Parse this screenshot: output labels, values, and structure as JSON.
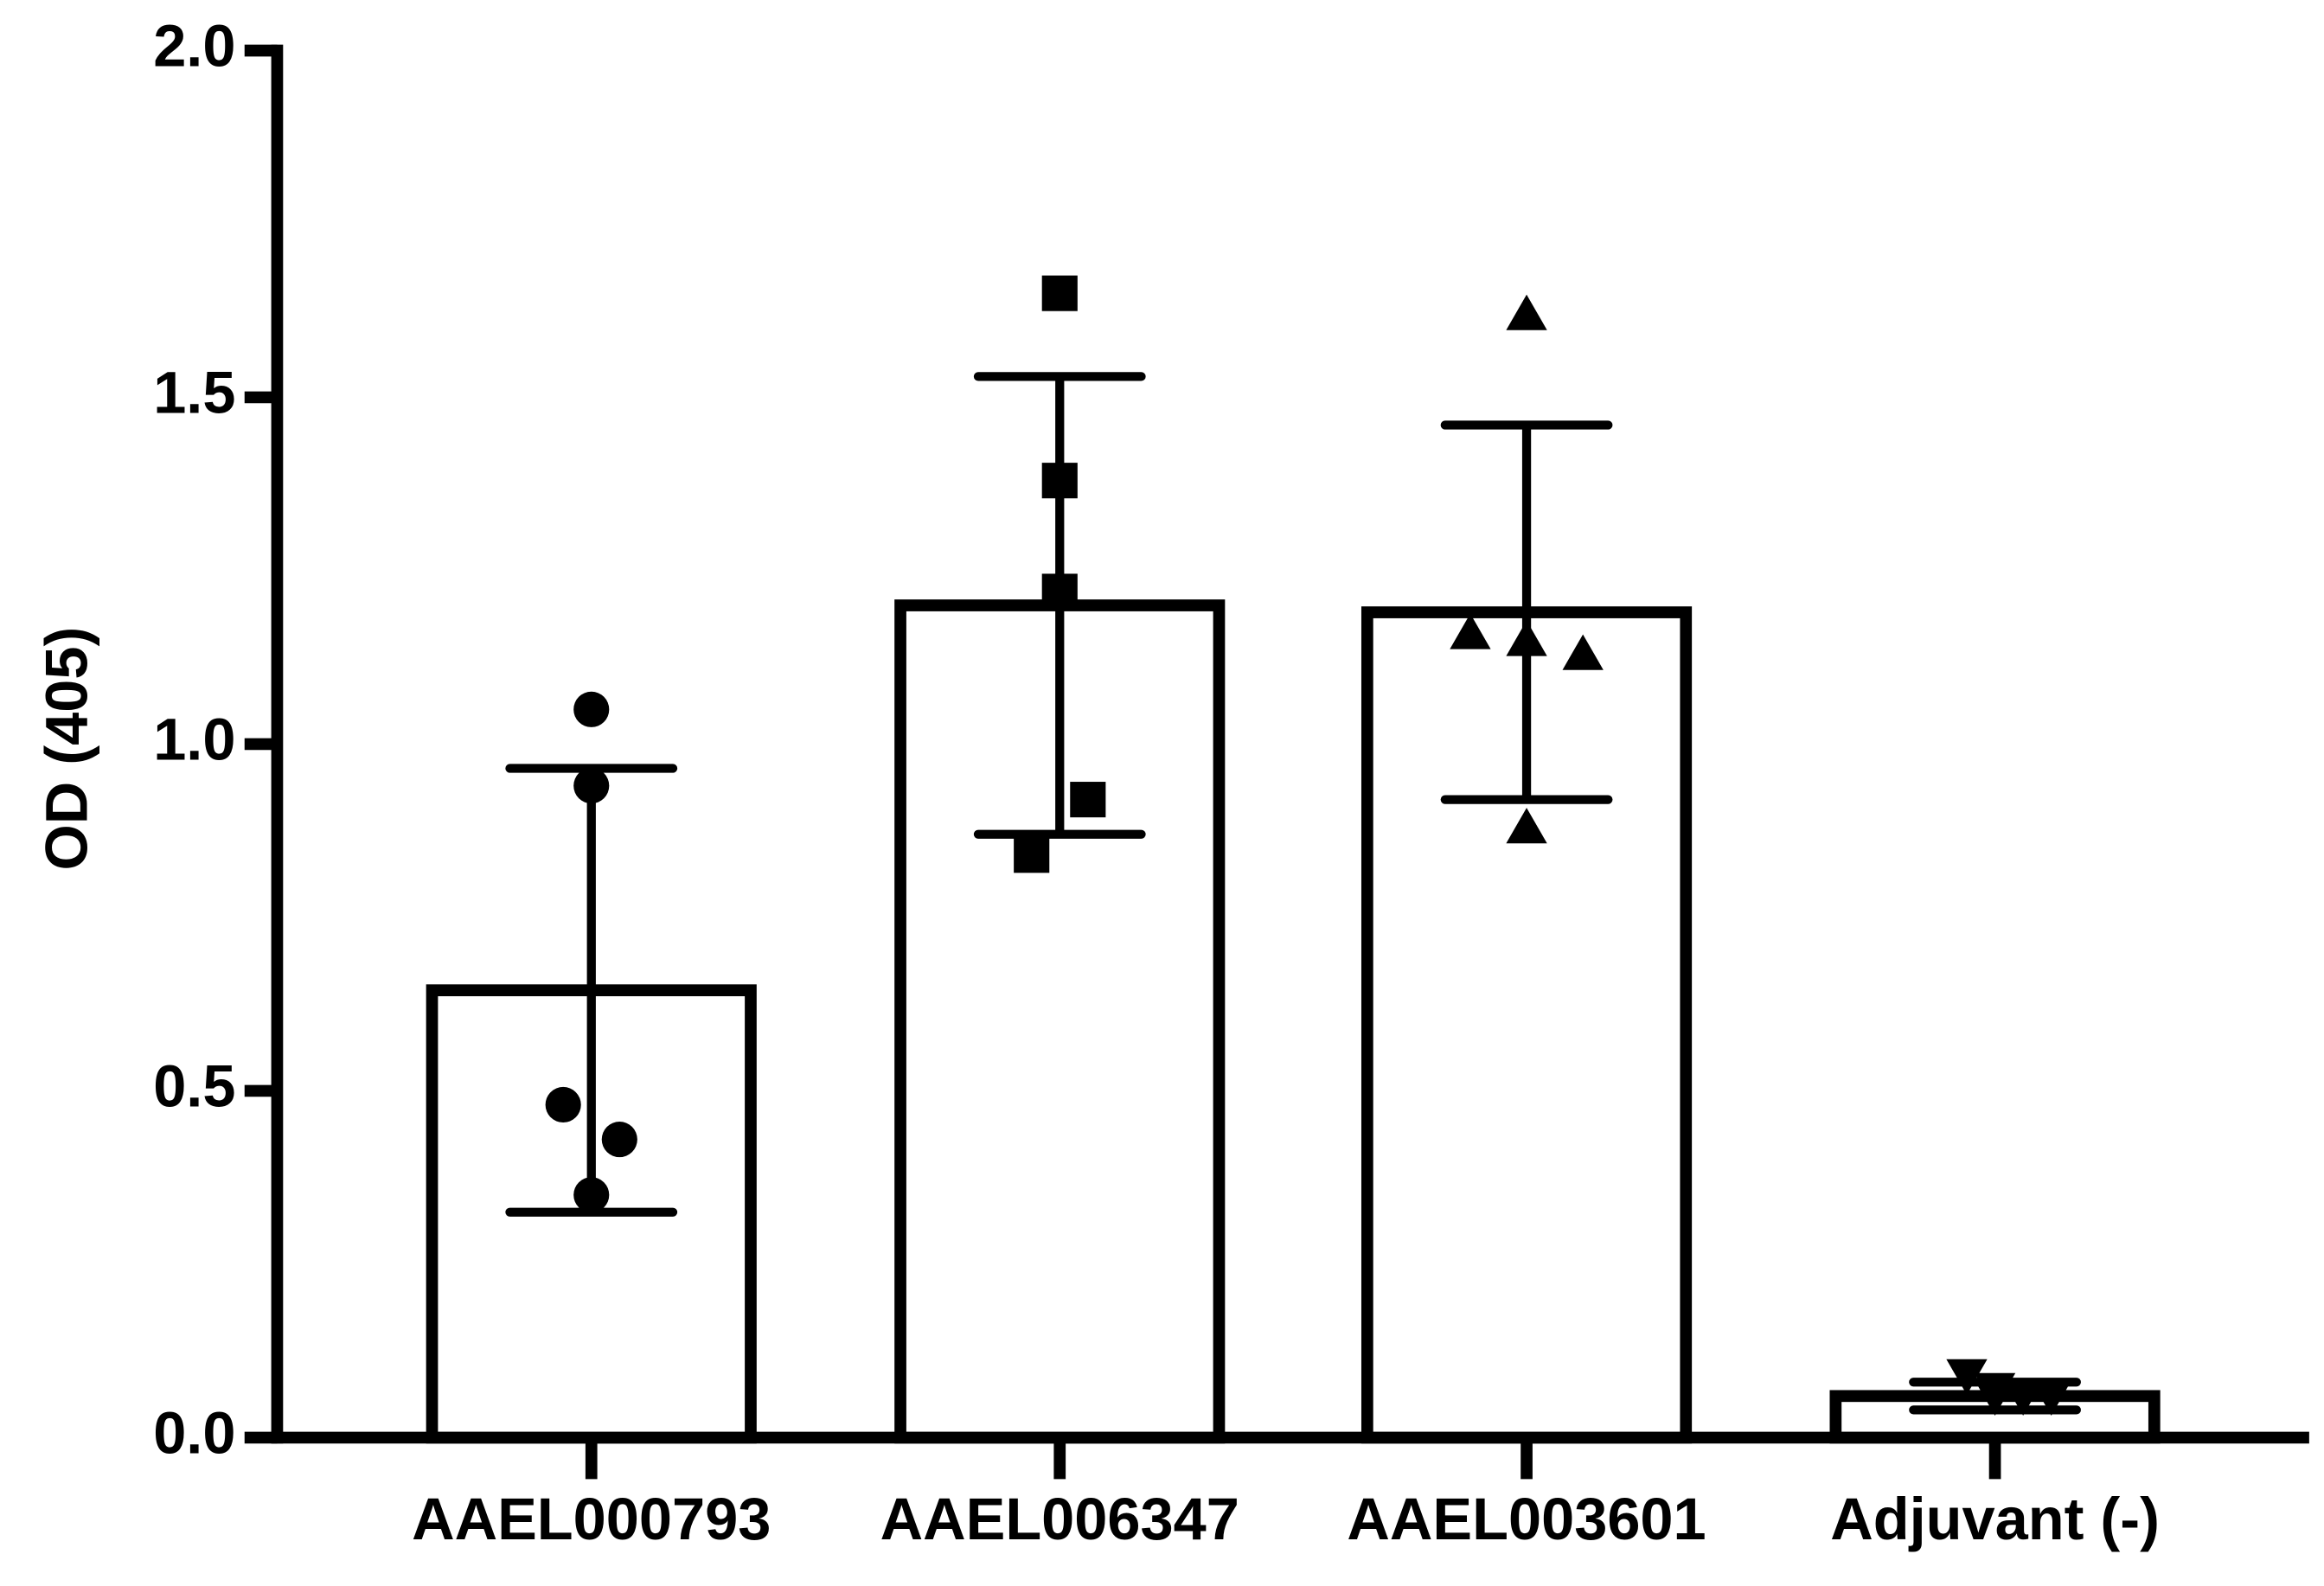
{
  "chart_data": {
    "type": "bar",
    "y_label": "OD (405)",
    "categories": [
      "AAEL000793",
      "AAEL006347",
      "AAEL003601",
      "Adjuvant (-)"
    ],
    "values": [
      0.645,
      1.2,
      1.19,
      0.06
    ],
    "errors": [
      0.32,
      0.33,
      0.27,
      0.02
    ],
    "points": [
      [
        1.05,
        0.94,
        0.48,
        0.43,
        0.35
      ],
      [
        1.65,
        1.38,
        1.22,
        0.92,
        0.84
      ],
      [
        1.62,
        1.15,
        1.16,
        1.13,
        0.88
      ],
      [
        0.09,
        0.07,
        0.06,
        0.06,
        0.06
      ]
    ],
    "markers": [
      "circle",
      "square",
      "triangle",
      "triangle-down"
    ],
    "color": "#000000",
    "bar_fill": "#ffffff",
    "ylim": [
      0,
      2
    ],
    "yticks": [
      {
        "value": 0,
        "label": "0.0"
      },
      0.5,
      {
        "value": 1,
        "label": "1.0"
      },
      1.5,
      {
        "value": 2,
        "label": "2.0"
      }
    ]
  }
}
